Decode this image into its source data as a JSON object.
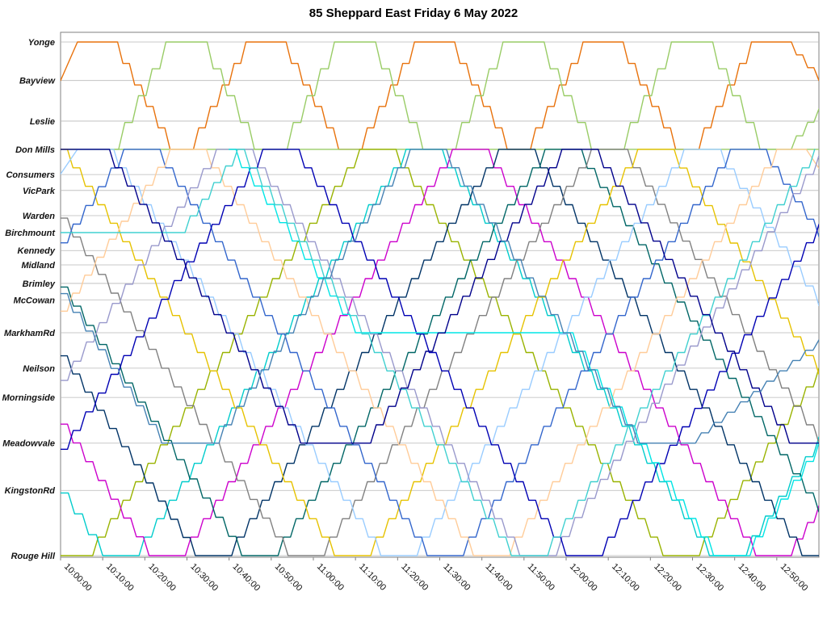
{
  "title": "85 Sheppard East Friday 6 May 2022",
  "chart_data": {
    "type": "line",
    "title": "85 Sheppard East Friday 6 May 2022",
    "xlabel": "",
    "ylabel": "",
    "legend": "none",
    "grid": "horizontal",
    "x_axis": {
      "start_minutes": 0,
      "end_minutes": 180,
      "tick_interval_minutes": 10,
      "tick_labels": [
        "10:00:00",
        "10:10:00",
        "10:20:00",
        "10:30:00",
        "10:40:00",
        "10:50:00",
        "11:00:00",
        "11:10:00",
        "11:20:00",
        "11:30:00",
        "11:40:00",
        "11:50:00",
        "12:00:00",
        "12:10:00",
        "12:20:00",
        "12:30:00",
        "12:40:00",
        "12:50:00"
      ]
    },
    "stops": [
      {
        "label": "Yonge",
        "pos": 0
      },
      {
        "label": "Bayview",
        "pos": 7.5
      },
      {
        "label": "Leslie",
        "pos": 15.4
      },
      {
        "label": "Don Mills",
        "pos": 20.9
      },
      {
        "label": "Consumers",
        "pos": 25.8
      },
      {
        "label": "VicPark",
        "pos": 28.9
      },
      {
        "label": "Warden",
        "pos": 33.8
      },
      {
        "label": "Birchmount",
        "pos": 37.1
      },
      {
        "label": "Kennedy",
        "pos": 40.6
      },
      {
        "label": "Midland",
        "pos": 43.4
      },
      {
        "label": "Brimley",
        "pos": 47.0
      },
      {
        "label": "McCowan",
        "pos": 50.2
      },
      {
        "label": "MarkhamRd",
        "pos": 56.6
      },
      {
        "label": "Neilson",
        "pos": 63.5
      },
      {
        "label": "Morningside",
        "pos": 69.2
      },
      {
        "label": "Meadowvale",
        "pos": 78.1
      },
      {
        "label": "KingstonRd",
        "pos": 87.3
      },
      {
        "label": "Rouge Hill",
        "pos": 100
      }
    ],
    "series": [
      {
        "name": "orange-yonge-donmills",
        "color": "#e8720c",
        "points": [
          [
            0,
            7.5
          ],
          [
            4,
            0
          ],
          [
            12,
            0
          ],
          [
            26,
            20.9
          ],
          [
            30,
            20.9
          ],
          [
            44,
            0
          ],
          [
            52,
            0
          ],
          [
            66,
            20.9
          ],
          [
            70,
            20.9
          ],
          [
            84,
            0
          ],
          [
            92,
            0
          ],
          [
            106,
            20.9
          ],
          [
            110,
            20.9
          ],
          [
            124,
            0
          ],
          [
            132,
            0
          ],
          [
            146,
            20.9
          ],
          [
            150,
            20.9
          ],
          [
            164,
            0
          ],
          [
            172,
            0
          ],
          [
            180,
            7.5
          ]
        ]
      },
      {
        "name": "green-yonge-donmills",
        "color": "#99cc66",
        "points": [
          [
            0,
            20.9
          ],
          [
            12,
            20.9
          ],
          [
            25,
            0
          ],
          [
            33,
            0
          ],
          [
            46,
            20.9
          ],
          [
            52,
            20.9
          ],
          [
            65,
            0
          ],
          [
            73,
            0
          ],
          [
            86,
            20.9
          ],
          [
            92,
            20.9
          ],
          [
            105,
            0
          ],
          [
            113,
            0
          ],
          [
            126,
            20.9
          ],
          [
            132,
            20.9
          ],
          [
            145,
            0
          ],
          [
            153,
            0
          ],
          [
            166,
            20.9
          ],
          [
            172,
            20.9
          ],
          [
            180,
            13
          ]
        ]
      },
      {
        "name": "green-donmills-layover",
        "color": "#99cc66",
        "points": [
          [
            0,
            20.9
          ],
          [
            180,
            20.9
          ]
        ]
      },
      {
        "name": "olive-run",
        "color": "#99b300",
        "points": [
          [
            0,
            100
          ],
          [
            6,
            100
          ],
          [
            71,
            20.9
          ],
          [
            78,
            20.9
          ],
          [
            143,
            100
          ],
          [
            150,
            100
          ],
          [
            180,
            63.5
          ]
        ]
      },
      {
        "name": "cyan-run",
        "color": "#00cccc",
        "points": [
          [
            0,
            87.8
          ],
          [
            10,
            100
          ],
          [
            17,
            100
          ],
          [
            82,
            20.9
          ],
          [
            89,
            20.9
          ],
          [
            154,
            100
          ],
          [
            161,
            100
          ],
          [
            180,
            76.9
          ]
        ]
      },
      {
        "name": "magenta-run",
        "color": "#cc00cc",
        "points": [
          [
            0,
            74.4
          ],
          [
            21,
            100
          ],
          [
            28,
            100
          ],
          [
            93,
            20.9
          ],
          [
            100,
            20.9
          ],
          [
            165,
            100
          ],
          [
            172,
            100
          ],
          [
            180,
            90.3
          ]
        ]
      },
      {
        "name": "navy-run",
        "color": "#003366",
        "points": [
          [
            0,
            61.1
          ],
          [
            32,
            100
          ],
          [
            39,
            100
          ],
          [
            104,
            20.9
          ],
          [
            111,
            20.9
          ],
          [
            176,
            100
          ],
          [
            180,
            100
          ]
        ]
      },
      {
        "name": "teal-run",
        "color": "#006666",
        "points": [
          [
            0,
            47.7
          ],
          [
            43,
            100
          ],
          [
            50,
            100
          ],
          [
            115,
            20.9
          ],
          [
            122,
            20.9
          ],
          [
            180,
            91.5
          ]
        ]
      },
      {
        "name": "gray-run",
        "color": "#808080",
        "points": [
          [
            0,
            34.3
          ],
          [
            54,
            100
          ],
          [
            61,
            100
          ],
          [
            126,
            20.9
          ],
          [
            133,
            20.9
          ],
          [
            180,
            78.1
          ]
        ]
      },
      {
        "name": "gold-run",
        "color": "#e6c200",
        "points": [
          [
            0,
            20.9
          ],
          [
            65,
            100
          ],
          [
            72,
            100
          ],
          [
            137,
            20.9
          ],
          [
            144,
            20.9
          ],
          [
            180,
            64.7
          ]
        ]
      },
      {
        "name": "lightblue-run",
        "color": "#99ccff",
        "points": [
          [
            0,
            25.7
          ],
          [
            4,
            20.9
          ],
          [
            11,
            20.9
          ],
          [
            76,
            100
          ],
          [
            83,
            100
          ],
          [
            148,
            20.9
          ],
          [
            155,
            20.9
          ],
          [
            180,
            51.3
          ]
        ]
      },
      {
        "name": "mediumblue-run",
        "color": "#3366cc",
        "points": [
          [
            0,
            39.1
          ],
          [
            15,
            20.9
          ],
          [
            22,
            20.9
          ],
          [
            87,
            100
          ],
          [
            94,
            100
          ],
          [
            159,
            20.9
          ],
          [
            166,
            20.9
          ],
          [
            180,
            37.9
          ]
        ]
      },
      {
        "name": "peach-run",
        "color": "#ffcc99",
        "points": [
          [
            0,
            52.4
          ],
          [
            26,
            20.9
          ],
          [
            33,
            20.9
          ],
          [
            98,
            100
          ],
          [
            105,
            100
          ],
          [
            170,
            20.9
          ],
          [
            177,
            20.9
          ],
          [
            180,
            24.6
          ]
        ]
      },
      {
        "name": "purplegray-run",
        "color": "#9999cc",
        "points": [
          [
            0,
            65.9
          ],
          [
            37,
            20.9
          ],
          [
            44,
            20.9
          ],
          [
            109,
            100
          ],
          [
            116,
            100
          ],
          [
            180,
            22.1
          ]
        ]
      },
      {
        "name": "darkblue-run",
        "color": "#0000b3",
        "points": [
          [
            0,
            79.3
          ],
          [
            48,
            20.9
          ],
          [
            55,
            20.9
          ],
          [
            120,
            100
          ],
          [
            127,
            100
          ],
          [
            180,
            35.5
          ]
        ]
      },
      {
        "name": "cyan-markham-layover",
        "color": "#00e5e5",
        "points": [
          [
            40,
            20.9
          ],
          [
            70,
            56.6
          ],
          [
            120,
            56.6
          ],
          [
            155,
            100
          ],
          [
            162,
            100
          ],
          [
            180,
            78
          ]
        ]
      },
      {
        "name": "turquoise-birchmount",
        "color": "#40d0d0",
        "points": [
          [
            0,
            37.1
          ],
          [
            28,
            37.1
          ],
          [
            42,
            20.9
          ],
          [
            107,
            100
          ],
          [
            114,
            100
          ],
          [
            179,
            20.9
          ]
        ]
      },
      {
        "name": "navy-meadowvale-shortturn",
        "color": "#00008b",
        "points": [
          [
            0,
            20.9
          ],
          [
            10,
            20.9
          ],
          [
            57,
            78.1
          ],
          [
            72,
            78.1
          ],
          [
            119,
            20.9
          ],
          [
            126,
            20.9
          ],
          [
            173,
            78.1
          ],
          [
            180,
            78.1
          ]
        ]
      },
      {
        "name": "steel-meadowvale-shortturn",
        "color": "#4682b4",
        "points": [
          [
            0,
            49
          ],
          [
            24,
            78.1
          ],
          [
            36,
            78.1
          ],
          [
            83,
            20.9
          ],
          [
            90,
            20.9
          ],
          [
            137,
            78.1
          ],
          [
            149,
            78.1
          ],
          [
            180,
            58
          ]
        ]
      }
    ],
    "colors": {
      "grid": "#b8b8b8",
      "axis": "#808080",
      "text": "#111111",
      "background": "#ffffff"
    }
  }
}
